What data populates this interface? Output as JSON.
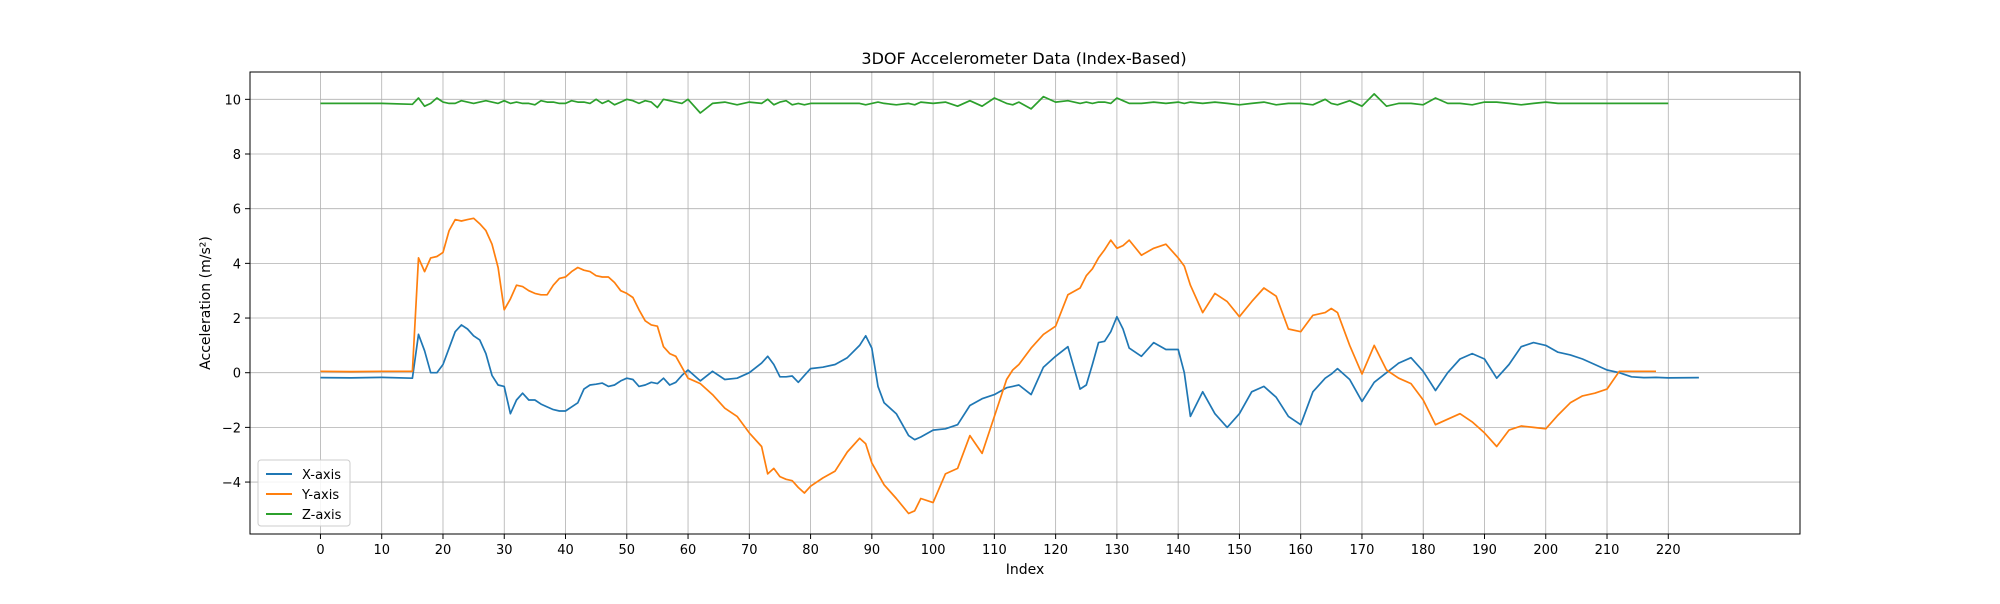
{
  "chart_data": {
    "type": "line",
    "title": "3DOF Accelerometer Data (Index-Based)",
    "xlabel": "Index",
    "ylabel": "Acceleration (m/s²)",
    "xlim": [
      -11.5,
      241.5
    ],
    "ylim": [
      -5.9,
      11.0
    ],
    "xticks": [
      0,
      10,
      20,
      30,
      40,
      50,
      60,
      70,
      80,
      90,
      100,
      110,
      120,
      130,
      140,
      150,
      160,
      170,
      180,
      190,
      200,
      210,
      220
    ],
    "yticks": [
      -4,
      -2,
      0,
      2,
      4,
      6,
      8,
      10
    ],
    "grid": true,
    "legend": "lower-left",
    "x_keypoints": [
      0,
      5,
      10,
      15,
      16,
      17,
      18,
      19,
      20,
      21,
      22,
      23,
      24,
      25,
      26,
      27,
      28,
      29,
      30,
      31,
      32,
      33,
      34,
      35,
      36,
      37,
      38,
      39,
      40,
      41,
      42,
      43,
      44,
      45,
      46,
      47,
      48,
      49,
      50,
      51,
      52,
      53,
      54,
      55,
      56,
      57,
      58,
      59,
      60,
      62,
      64,
      66,
      68,
      70,
      72,
      73,
      74,
      75,
      76,
      77,
      78,
      79,
      80,
      82,
      84,
      86,
      88,
      89,
      90,
      91,
      92,
      94,
      96,
      97,
      98,
      100,
      102,
      104,
      106,
      108,
      110,
      112,
      113,
      114,
      116,
      118,
      120,
      122,
      124,
      125,
      126,
      127,
      128,
      129,
      130,
      131,
      132,
      134,
      136,
      138,
      140,
      141,
      142,
      144,
      146,
      148,
      150,
      152,
      154,
      156,
      158,
      160,
      162,
      164,
      165,
      166,
      168,
      170,
      172,
      174,
      176,
      178,
      180,
      182,
      184,
      186,
      188,
      190,
      192,
      194,
      196,
      198,
      200,
      202,
      204,
      206,
      208,
      210,
      212,
      214,
      216,
      218,
      220,
      225,
      229
    ],
    "series": [
      {
        "name": "X-axis",
        "color": "#1f77b4",
        "values": [
          -0.18,
          -0.19,
          -0.17,
          -0.2,
          1.4,
          0.8,
          0.0,
          0.0,
          0.3,
          0.9,
          1.5,
          1.75,
          1.6,
          1.35,
          1.2,
          0.7,
          -0.1,
          -0.45,
          -0.5,
          -1.5,
          -1.0,
          -0.75,
          -1.0,
          -1.0,
          -1.15,
          -1.25,
          -1.35,
          -1.4,
          -1.4,
          -1.25,
          -1.1,
          -0.6,
          -0.45,
          -0.42,
          -0.38,
          -0.5,
          -0.45,
          -0.3,
          -0.2,
          -0.25,
          -0.5,
          -0.45,
          -0.35,
          -0.4,
          -0.2,
          -0.45,
          -0.35,
          -0.1,
          0.1,
          -0.3,
          0.05,
          -0.25,
          -0.2,
          0.0,
          0.35,
          0.6,
          0.3,
          -0.15,
          -0.15,
          -0.12,
          -0.35,
          -0.1,
          0.15,
          0.2,
          0.3,
          0.55,
          1.0,
          1.35,
          0.9,
          -0.5,
          -1.1,
          -1.5,
          -2.3,
          -2.45,
          -2.35,
          -2.1,
          -2.05,
          -1.9,
          -1.2,
          -0.95,
          -0.8,
          -0.55,
          -0.5,
          -0.45,
          -0.8,
          0.2,
          0.6,
          0.95,
          -0.6,
          -0.45,
          0.3,
          1.1,
          1.15,
          1.5,
          2.05,
          1.6,
          0.9,
          0.6,
          1.1,
          0.85,
          0.85,
          0.0,
          -1.6,
          -0.7,
          -1.5,
          -2.0,
          -1.5,
          -0.7,
          -0.5,
          -0.9,
          -1.6,
          -1.9,
          -0.7,
          -0.2,
          -0.05,
          0.15,
          -0.25,
          -1.05,
          -0.35,
          0.0,
          0.35,
          0.55,
          0.05,
          -0.65,
          0.0,
          0.5,
          0.7,
          0.5,
          -0.2,
          0.3,
          0.95,
          1.1,
          1.0,
          0.75,
          0.65,
          0.5,
          0.3,
          0.1,
          0.0,
          -0.15,
          -0.18,
          -0.17,
          -0.19,
          -0.18
        ]
      },
      {
        "name": "Y-axis",
        "color": "#ff7f0e",
        "values": [
          0.05,
          0.04,
          0.05,
          0.05,
          4.2,
          3.7,
          4.2,
          4.25,
          4.4,
          5.2,
          5.6,
          5.55,
          5.6,
          5.65,
          5.45,
          5.2,
          4.7,
          3.85,
          2.3,
          2.7,
          3.2,
          3.15,
          3.0,
          2.9,
          2.85,
          2.85,
          3.2,
          3.45,
          3.5,
          3.7,
          3.85,
          3.75,
          3.7,
          3.55,
          3.5,
          3.5,
          3.3,
          3.0,
          2.9,
          2.75,
          2.3,
          1.9,
          1.75,
          1.7,
          0.95,
          0.7,
          0.6,
          0.2,
          -0.2,
          -0.4,
          -0.8,
          -1.3,
          -1.6,
          -2.2,
          -2.7,
          -3.7,
          -3.5,
          -3.8,
          -3.9,
          -3.95,
          -4.2,
          -4.4,
          -4.15,
          -3.85,
          -3.6,
          -2.9,
          -2.4,
          -2.6,
          -3.3,
          -3.7,
          -4.1,
          -4.6,
          -5.15,
          -5.05,
          -4.6,
          -4.75,
          -3.7,
          -3.5,
          -2.3,
          -2.95,
          -1.6,
          -0.25,
          0.1,
          0.3,
          0.9,
          1.4,
          1.7,
          2.85,
          3.1,
          3.55,
          3.8,
          4.2,
          4.5,
          4.85,
          4.55,
          4.65,
          4.85,
          4.3,
          4.55,
          4.7,
          4.2,
          3.9,
          3.2,
          2.2,
          2.9,
          2.6,
          2.05,
          2.6,
          3.1,
          2.8,
          1.6,
          1.5,
          2.1,
          2.2,
          2.35,
          2.2,
          1.0,
          -0.05,
          1.0,
          0.1,
          -0.2,
          -0.4,
          -1.0,
          -1.9,
          -1.7,
          -1.5,
          -1.8,
          -2.2,
          -2.7,
          -2.1,
          -1.95,
          -2.0,
          -2.05,
          -1.55,
          -1.1,
          -0.85,
          -0.75,
          -0.6,
          0.05,
          0.05,
          0.05,
          0.05
        ]
      },
      {
        "name": "Z-axis",
        "color": "#2ca02c",
        "values": [
          9.85,
          9.85,
          9.85,
          9.82,
          10.05,
          9.75,
          9.85,
          10.05,
          9.9,
          9.85,
          9.85,
          9.95,
          9.9,
          9.85,
          9.9,
          9.95,
          9.9,
          9.85,
          9.95,
          9.85,
          9.9,
          9.85,
          9.85,
          9.8,
          9.95,
          9.9,
          9.9,
          9.85,
          9.85,
          9.95,
          9.9,
          9.9,
          9.85,
          10.0,
          9.85,
          9.95,
          9.8,
          9.9,
          10.0,
          9.95,
          9.85,
          9.95,
          9.9,
          9.7,
          10.0,
          9.95,
          9.9,
          9.85,
          10.0,
          9.5,
          9.85,
          9.9,
          9.8,
          9.9,
          9.85,
          10.0,
          9.8,
          9.9,
          9.95,
          9.8,
          9.85,
          9.8,
          9.85,
          9.85,
          9.85,
          9.85,
          9.85,
          9.8,
          9.85,
          9.9,
          9.85,
          9.8,
          9.85,
          9.8,
          9.9,
          9.85,
          9.9,
          9.75,
          9.95,
          9.75,
          10.05,
          9.85,
          9.8,
          9.9,
          9.65,
          10.1,
          9.9,
          9.95,
          9.85,
          9.9,
          9.85,
          9.9,
          9.9,
          9.85,
          10.05,
          9.95,
          9.85,
          9.85,
          9.9,
          9.85,
          9.9,
          9.85,
          9.9,
          9.85,
          9.9,
          9.85,
          9.8,
          9.85,
          9.9,
          9.8,
          9.85,
          9.85,
          9.8,
          10.0,
          9.85,
          9.8,
          9.95,
          9.75,
          10.2,
          9.75,
          9.85,
          9.85,
          9.8,
          10.05,
          9.85,
          9.85,
          9.8,
          9.9,
          9.9,
          9.85,
          9.8,
          9.85,
          9.9,
          9.85,
          9.85,
          9.85,
          9.85,
          9.85,
          9.85,
          9.85,
          9.85,
          9.85,
          9.85
        ]
      }
    ]
  }
}
